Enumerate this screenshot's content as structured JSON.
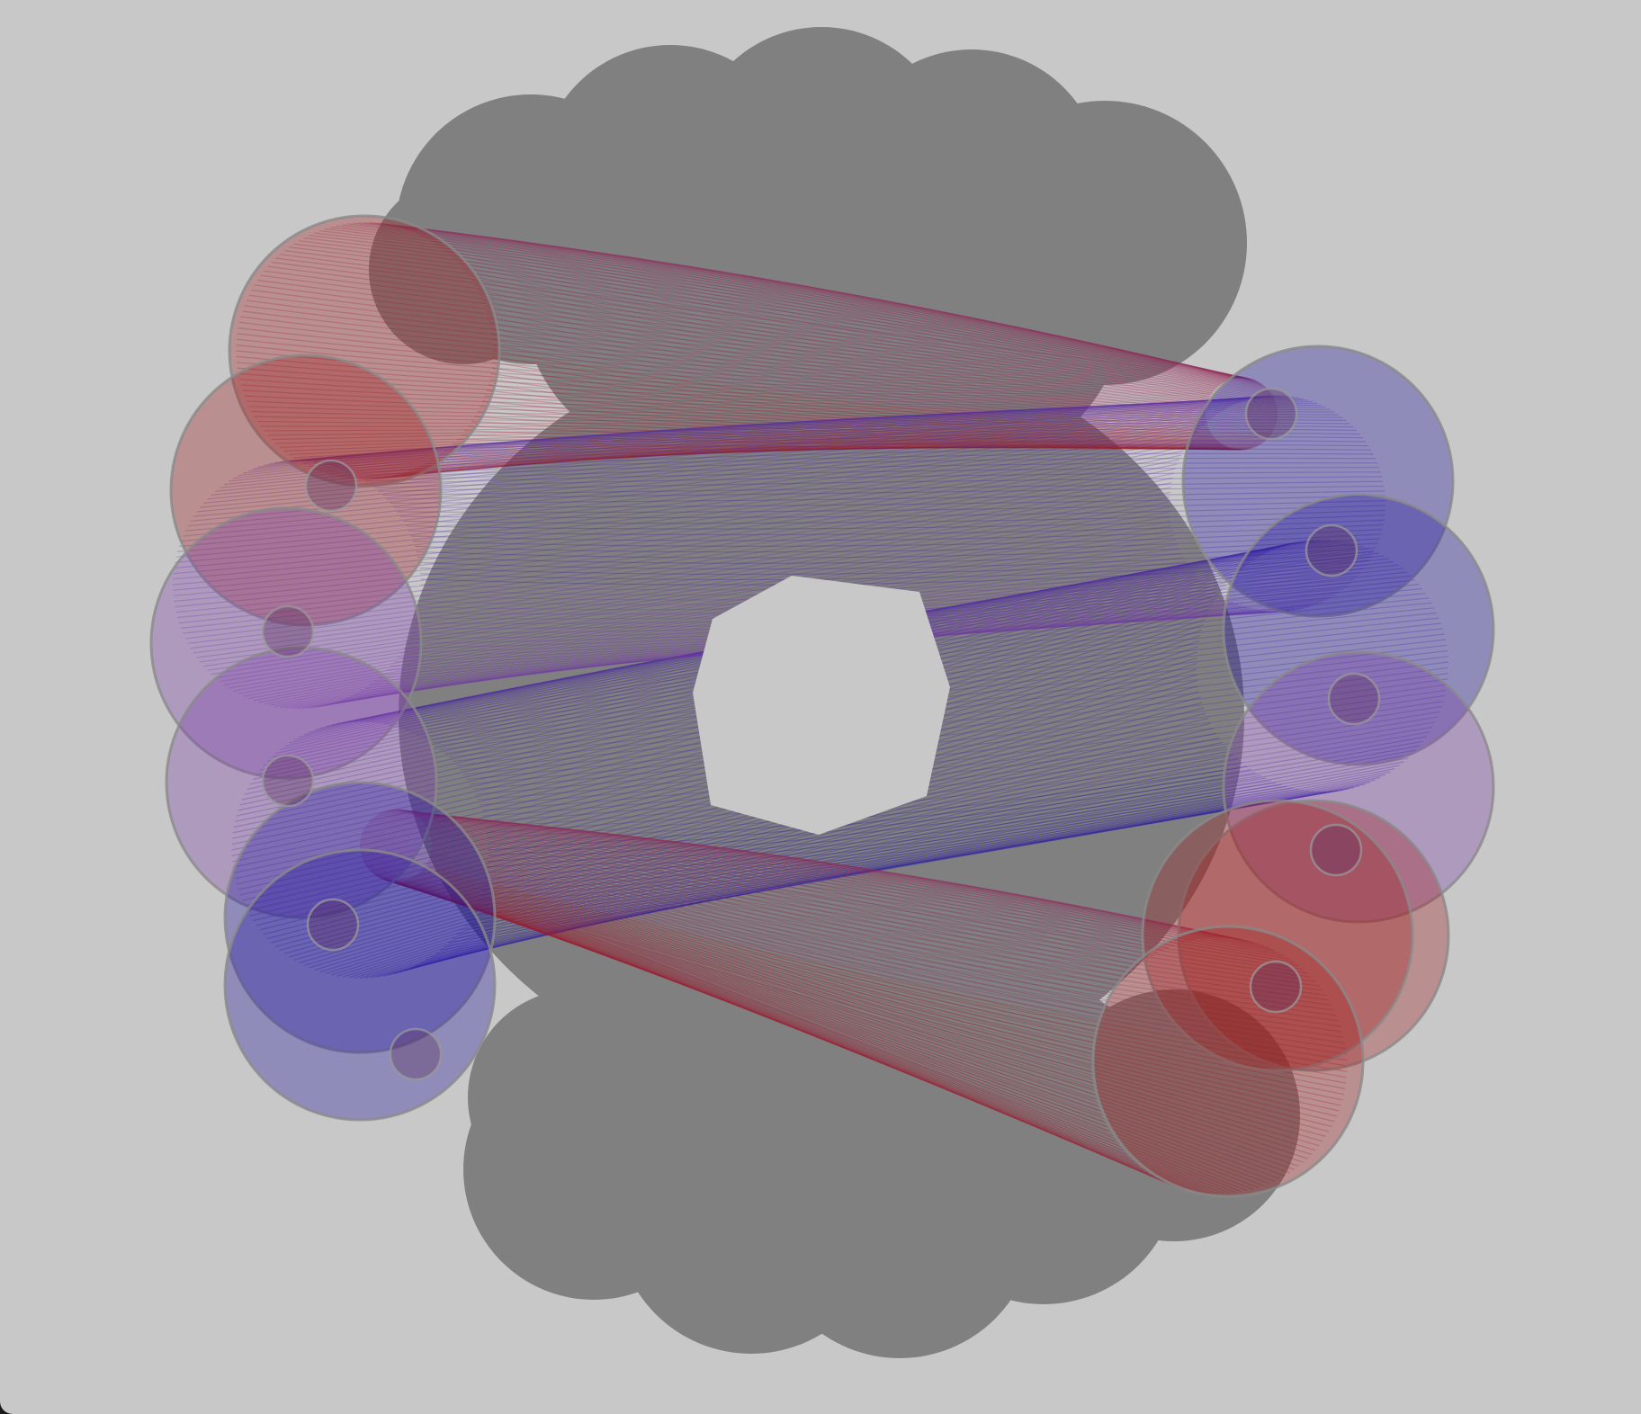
{
  "canvas": {
    "background": "#c8c8c8",
    "backdrop_color": "#808080",
    "outline_color": "#8a8a8a"
  },
  "artwork": {
    "type": "generative-tube-ring",
    "palette": {
      "red": "#a01818",
      "blue": "#1c0fa0",
      "violet": "#7a3aa8"
    },
    "tube_count": 4,
    "discs_per_side": 6,
    "strands_per_tube": 140
  }
}
